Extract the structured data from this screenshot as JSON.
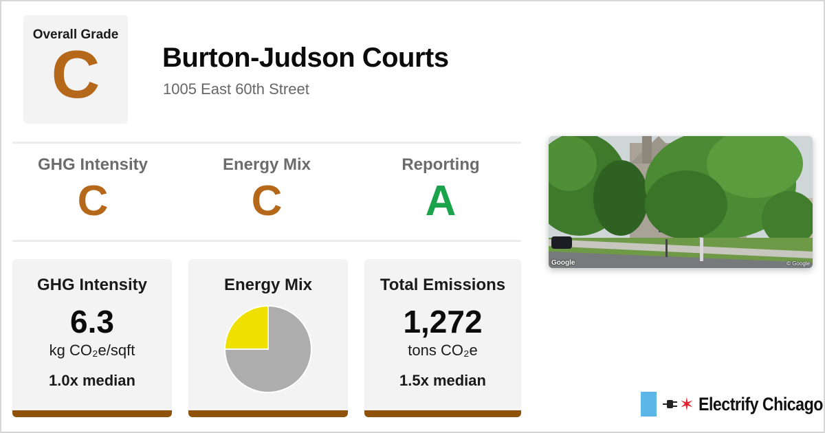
{
  "colors": {
    "grade_c": "#b5681a",
    "grade_a": "#1aa34a",
    "accent_bar": "#8f520b",
    "pie_fossil": "#adadad",
    "pie_renewable": "#efe000",
    "brand_blue": "#5cb6e6",
    "brand_star": "#e5202e"
  },
  "overall": {
    "label": "Overall Grade",
    "grade": "C"
  },
  "building": {
    "name": "Burton-Judson Courts",
    "address": "1005 East 60th Street"
  },
  "subgrades": [
    {
      "label": "GHG Intensity",
      "grade": "C"
    },
    {
      "label": "Energy Mix",
      "grade": "C"
    },
    {
      "label": "Reporting",
      "grade": "A"
    }
  ],
  "cards": {
    "ghg": {
      "title": "GHG Intensity",
      "value": "6.3",
      "unit": "kg CO₂e/sqft",
      "median": "1.0x median"
    },
    "mix": {
      "title": "Energy Mix"
    },
    "emissions": {
      "title": "Total Emissions",
      "value": "1,272",
      "unit": "tons CO₂e",
      "median": "1.5x median"
    }
  },
  "chart_data": {
    "type": "pie",
    "values": [
      0.25,
      0.75
    ],
    "colors": [
      "#efe000",
      "#adadad"
    ]
  },
  "photo": {
    "google_logo": "Google",
    "copyright": "© Google"
  },
  "brand": {
    "name": "Electrify Chicago",
    "star_glyph": "✶"
  }
}
